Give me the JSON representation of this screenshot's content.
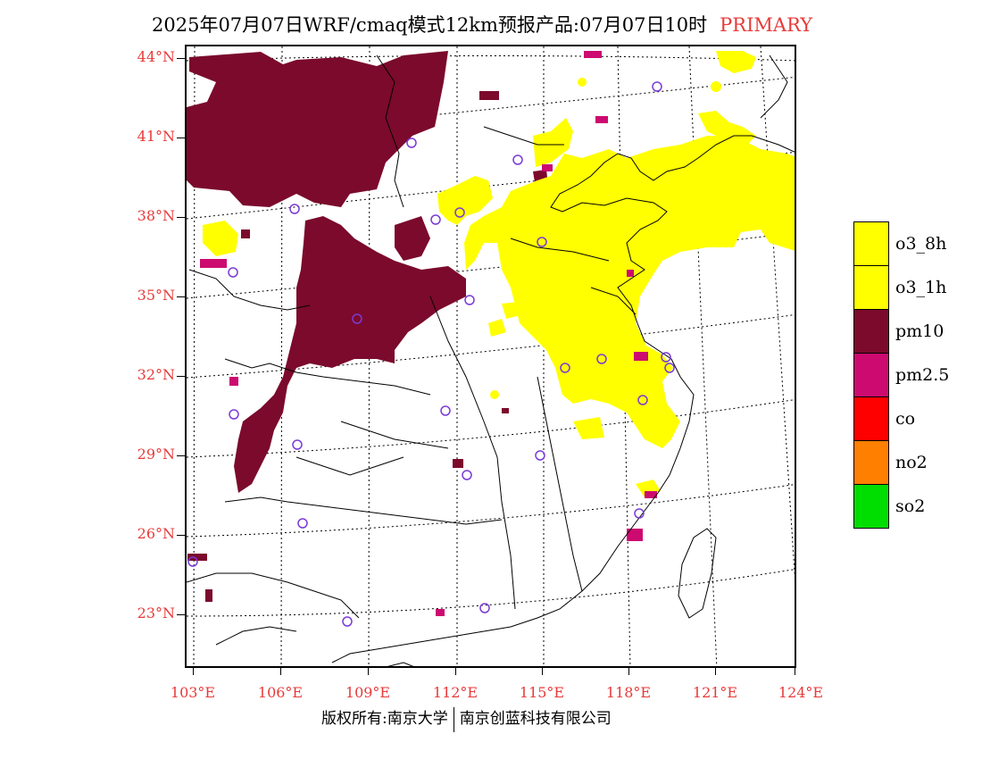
{
  "title": {
    "main": "2025年07月07日WRF/cmaq模式12km预报产品:07月07日10时",
    "tag": "PRIMARY"
  },
  "lat_labels": [
    "44°N",
    "41°N",
    "38°N",
    "35°N",
    "32°N",
    "29°N",
    "26°N",
    "23°N"
  ],
  "lon_labels": [
    "103°E",
    "106°E",
    "109°E",
    "112°E",
    "115°E",
    "118°E",
    "121°E",
    "124°E"
  ],
  "legend": [
    {
      "label": "o3_8h",
      "color": "#ffff00"
    },
    {
      "label": "o3_1h",
      "color": "#ffff00"
    },
    {
      "label": "pm10",
      "color": "#7b0a2c"
    },
    {
      "label": "pm2.5",
      "color": "#cc0a70"
    },
    {
      "label": "co",
      "color": "#ff0000"
    },
    {
      "label": "no2",
      "color": "#ff7f00"
    },
    {
      "label": "so2",
      "color": "#00dd00"
    }
  ],
  "footer": {
    "left": "版权所有:南京大学",
    "right": "南京创蓝科技有限公司"
  }
}
